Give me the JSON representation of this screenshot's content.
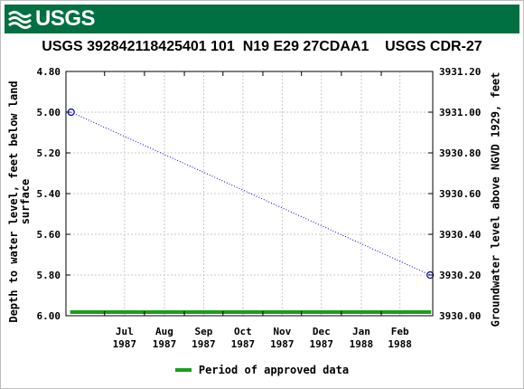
{
  "header": {
    "logo_text": "USGS"
  },
  "chart_data": {
    "type": "line",
    "title": "USGS 392842118425401 101  N19 E29 27CDAA1    USGS CDR-27",
    "ylabel_left": "Depth to water level, feet below land\nsurface",
    "ylabel_right": "Groundwater level above NGVD 1929, feet",
    "left_axis": {
      "min": 4.8,
      "max": 6.0,
      "inverted": true,
      "ticks": [
        "4.80",
        "5.00",
        "5.20",
        "5.40",
        "5.60",
        "5.80",
        "6.00"
      ]
    },
    "right_axis": {
      "min": 3930.0,
      "max": 3931.2,
      "ticks": [
        "3931.20",
        "3931.00",
        "3930.80",
        "3930.60",
        "3930.40",
        "3930.20",
        "3930.00"
      ]
    },
    "x_ticks": [
      {
        "month": "Jul",
        "year": "1987"
      },
      {
        "month": "Aug",
        "year": "1987"
      },
      {
        "month": "Sep",
        "year": "1987"
      },
      {
        "month": "Oct",
        "year": "1987"
      },
      {
        "month": "Nov",
        "year": "1987"
      },
      {
        "month": "Dec",
        "year": "1987"
      },
      {
        "month": "Jan",
        "year": "1988"
      },
      {
        "month": "Feb",
        "year": "1988"
      }
    ],
    "series": [
      {
        "points": [
          {
            "date": "1987-06-05",
            "depth": 5.0
          },
          {
            "date": "1988-03-10",
            "depth": 5.8
          }
        ],
        "color": "#0000cc",
        "style": "dotted",
        "marker": "open-circle"
      }
    ],
    "approved_period": {
      "start": "1987-06-05",
      "end": "1988-03-10",
      "color": "#1a9e1a"
    },
    "grid": true,
    "legend": {
      "position": "bottom-center",
      "label": "Period of approved data"
    }
  }
}
